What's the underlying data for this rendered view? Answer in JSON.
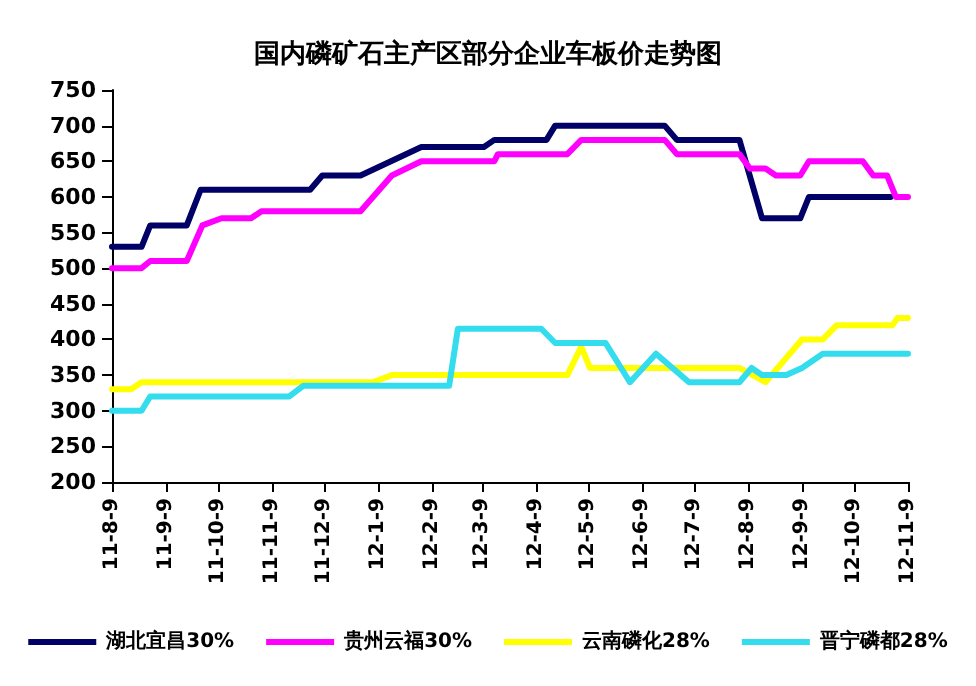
{
  "chart_data": {
    "type": "line",
    "title": "国内磷矿石主产区部分企业车板价走势图",
    "xlim": [
      "2011-08-09",
      "2012-11-09"
    ],
    "xticks": [
      {
        "value": "2011-08-09",
        "label": "11-8-9"
      },
      {
        "value": "2011-09-09",
        "label": "11-9-9"
      },
      {
        "value": "2011-10-09",
        "label": "11-10-9"
      },
      {
        "value": "2011-11-09",
        "label": "11-11-9"
      },
      {
        "value": "2011-12-09",
        "label": "11-12-9"
      },
      {
        "value": "2012-01-09",
        "label": "12-1-9"
      },
      {
        "value": "2012-02-09",
        "label": "12-2-9"
      },
      {
        "value": "2012-03-09",
        "label": "12-3-9"
      },
      {
        "value": "2012-04-09",
        "label": "12-4-9"
      },
      {
        "value": "2012-05-09",
        "label": "12-5-9"
      },
      {
        "value": "2012-06-09",
        "label": "12-6-9"
      },
      {
        "value": "2012-07-09",
        "label": "12-7-9"
      },
      {
        "value": "2012-08-09",
        "label": "12-8-9"
      },
      {
        "value": "2012-09-09",
        "label": "12-9-9"
      },
      {
        "value": "2012-10-09",
        "label": "12-10-9"
      },
      {
        "value": "2012-11-09",
        "label": "12-11-9"
      }
    ],
    "ylim": [
      200,
      750
    ],
    "yticks": [
      200,
      250,
      300,
      350,
      400,
      450,
      500,
      550,
      600,
      650,
      700,
      750
    ],
    "grid": false,
    "legend": "bottom",
    "marker": "none",
    "line_style": "solid",
    "series": [
      {
        "name": "湖北宜昌30%",
        "color": "#000066",
        "x": [
          "2011-08-09",
          "2011-08-26",
          "2011-08-31",
          "2011-09-21",
          "2011-09-29",
          "2011-12-01",
          "2011-12-08",
          "2011-12-30",
          "2012-02-03",
          "2012-03-10",
          "2012-03-16",
          "2012-04-15",
          "2012-04-20",
          "2012-06-22",
          "2012-06-29",
          "2012-08-04",
          "2012-08-17",
          "2012-09-08",
          "2012-09-13",
          "2012-10-30"
        ],
        "values": [
          530,
          530,
          560,
          560,
          610,
          610,
          630,
          630,
          670,
          670,
          680,
          680,
          700,
          700,
          680,
          680,
          570,
          570,
          600,
          600
        ]
      },
      {
        "name": "贵州云福30%",
        "color": "#ff00ff",
        "x": [
          "2011-08-09",
          "2011-08-26",
          "2011-08-31",
          "2011-09-21",
          "2011-09-30",
          "2011-10-11",
          "2011-10-28",
          "2011-11-03",
          "2011-12-30",
          "2012-01-17",
          "2012-02-03",
          "2012-03-16",
          "2012-03-18",
          "2012-04-27",
          "2012-05-05",
          "2012-06-22",
          "2012-06-29",
          "2012-08-04",
          "2012-08-10",
          "2012-08-19",
          "2012-08-25",
          "2012-09-08",
          "2012-09-13",
          "2012-10-14",
          "2012-10-20",
          "2012-10-28",
          "2012-11-02",
          "2012-11-09"
        ],
        "values": [
          500,
          500,
          510,
          510,
          560,
          570,
          570,
          580,
          580,
          630,
          650,
          650,
          660,
          660,
          680,
          680,
          660,
          660,
          640,
          640,
          630,
          630,
          650,
          650,
          630,
          630,
          600,
          600
        ]
      },
      {
        "name": "云南磷化28%",
        "color": "#ffff00",
        "x": [
          "2011-08-09",
          "2011-08-20",
          "2011-08-26",
          "2012-01-06",
          "2012-01-17",
          "2012-04-27",
          "2012-05-05",
          "2012-05-10",
          "2012-08-04",
          "2012-08-19",
          "2012-09-09",
          "2012-09-21",
          "2012-09-29",
          "2012-10-31",
          "2012-11-03",
          "2012-11-09"
        ],
        "values": [
          330,
          330,
          340,
          340,
          350,
          350,
          390,
          360,
          360,
          340,
          400,
          400,
          420,
          420,
          430,
          430
        ]
      },
      {
        "name": "晋宁磷都28%",
        "color": "#33ddee",
        "x": [
          "2011-08-09",
          "2011-08-26",
          "2011-08-31",
          "2011-11-19",
          "2011-11-27",
          "2012-02-19",
          "2012-02-24",
          "2012-04-12",
          "2012-04-20",
          "2012-05-19",
          "2012-06-02",
          "2012-06-17",
          "2012-07-06",
          "2012-08-04",
          "2012-08-11",
          "2012-08-17",
          "2012-08-31",
          "2012-09-09",
          "2012-09-21",
          "2012-11-09"
        ],
        "values": [
          300,
          300,
          320,
          320,
          335,
          335,
          415,
          415,
          395,
          395,
          340,
          380,
          340,
          340,
          360,
          350,
          350,
          360,
          380,
          380
        ]
      }
    ]
  }
}
